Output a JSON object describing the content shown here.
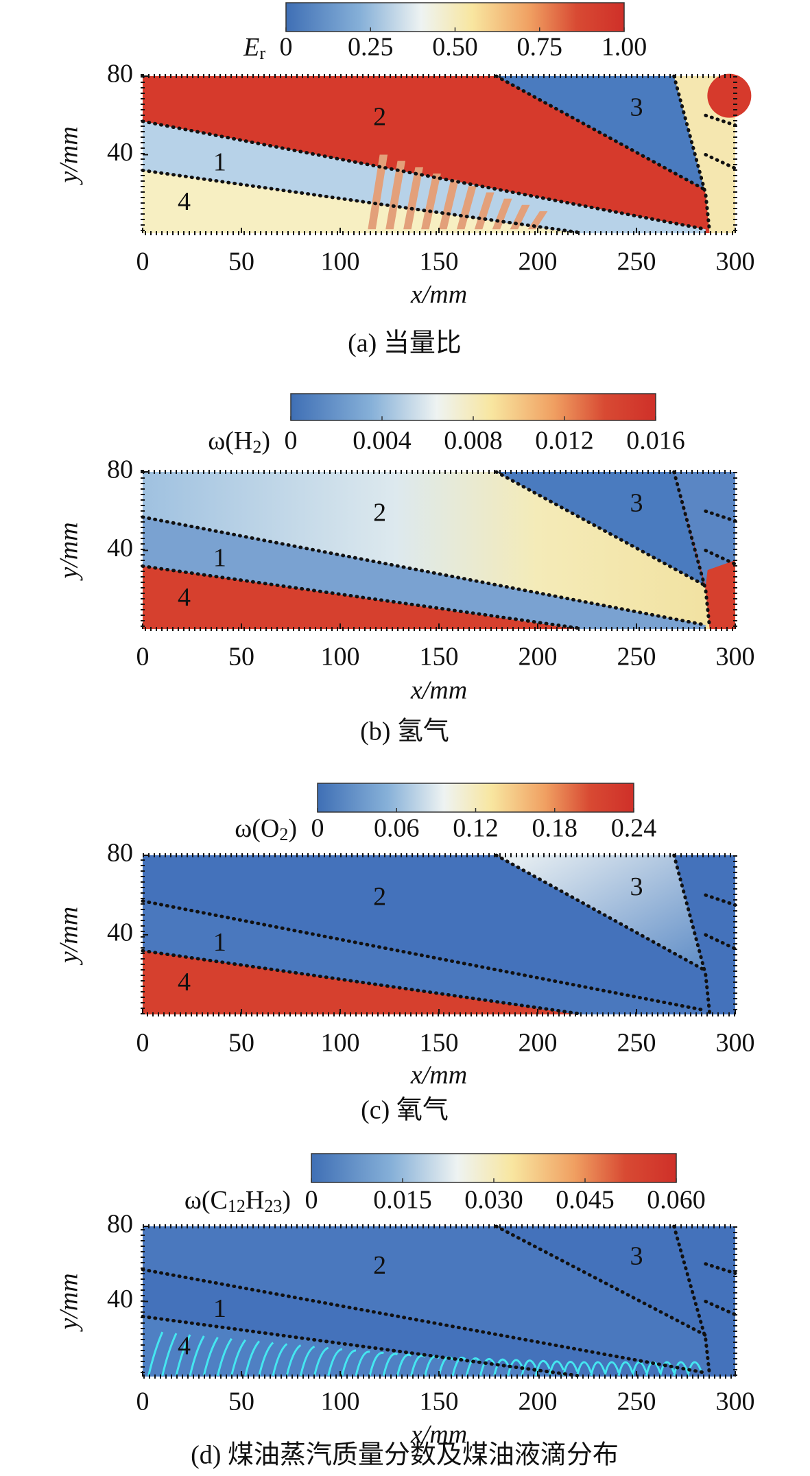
{
  "chart_data": [
    {
      "type": "contour",
      "colorbar_label": [
        "E",
        "r"
      ],
      "colorbar_lim": [
        0,
        1
      ],
      "colorbar_ticks": [
        0,
        0.25,
        {
          "value": 0.5,
          "label": "0.50"
        },
        0.75,
        {
          "value": 1,
          "label": "1.00"
        }
      ],
      "xlim": [
        0,
        300
      ],
      "xticks": [
        0,
        50,
        100,
        150,
        200,
        250,
        300
      ],
      "ylim": [
        0,
        80
      ],
      "yticks": [
        40,
        80
      ],
      "xlabel": "x/mm",
      "ylabel": "y/mm",
      "regions": [
        "2",
        "3",
        "1",
        "4"
      ],
      "caption": "(a) 当量比"
    },
    {
      "type": "contour",
      "colorbar_label": [
        "ω(H",
        "2",
        ")"
      ],
      "colorbar_lim": [
        0,
        0.016
      ],
      "colorbar_ticks": [
        0,
        0.004,
        0.008,
        0.012,
        0.016
      ],
      "xlim": [
        0,
        300
      ],
      "xticks": [
        0,
        50,
        100,
        150,
        200,
        250,
        300
      ],
      "ylim": [
        0,
        80
      ],
      "yticks": [
        40,
        80
      ],
      "xlabel": "x/mm",
      "ylabel": "y/mm",
      "regions": [
        "2",
        "3",
        "1",
        "4"
      ],
      "caption": "(b) 氢气"
    },
    {
      "type": "contour",
      "colorbar_label": [
        "ω(O",
        "2",
        ")"
      ],
      "colorbar_lim": [
        0,
        0.24
      ],
      "colorbar_ticks": [
        0,
        0.06,
        0.12,
        0.18,
        0.24
      ],
      "xlim": [
        0,
        300
      ],
      "xticks": [
        0,
        50,
        100,
        150,
        200,
        250,
        300
      ],
      "ylim": [
        0,
        80
      ],
      "yticks": [
        40,
        80
      ],
      "xlabel": "x/mm",
      "ylabel": "y/mm",
      "regions": [
        "2",
        "3",
        "1",
        "4"
      ],
      "caption": "(c) 氧气"
    },
    {
      "type": "contour",
      "colorbar_label": [
        "ω(C",
        "12",
        "H",
        "23",
        ")"
      ],
      "colorbar_lim": [
        0,
        0.06
      ],
      "colorbar_ticks": [
        0,
        0.015,
        {
          "value": 0.03,
          "label": "0.030"
        },
        0.045,
        {
          "value": 0.06,
          "label": "0.060"
        }
      ],
      "xlim": [
        0,
        300
      ],
      "xticks": [
        0,
        50,
        100,
        150,
        200,
        250,
        300
      ],
      "ylim": [
        0,
        80
      ],
      "yticks": [
        40,
        80
      ],
      "xlabel": "x/mm",
      "ylabel": "y/mm",
      "regions": [
        "2",
        "3",
        "1",
        "4"
      ],
      "caption": "(d) 煤油蒸汽质量分数及煤油液滴分布"
    }
  ]
}
